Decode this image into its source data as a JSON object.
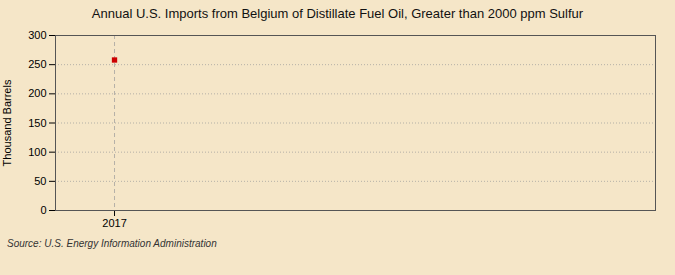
{
  "chart_data": {
    "type": "scatter",
    "title": "Annual U.S. Imports from Belgium of Distillate Fuel Oil, Greater than 2000 ppm Sulfur",
    "ylabel": "Thousand Barrels",
    "source": "Source: U.S. Energy Information Administration",
    "x": [
      2017
    ],
    "values": [
      258
    ],
    "color": "#cc0000",
    "marker": "square",
    "xlim": [
      2016.4,
      2022.5
    ],
    "xticks": [
      2017
    ],
    "ylim": [
      0,
      300
    ],
    "yticks": [
      0,
      50,
      100,
      150,
      200,
      250,
      300
    ],
    "grid": true
  }
}
